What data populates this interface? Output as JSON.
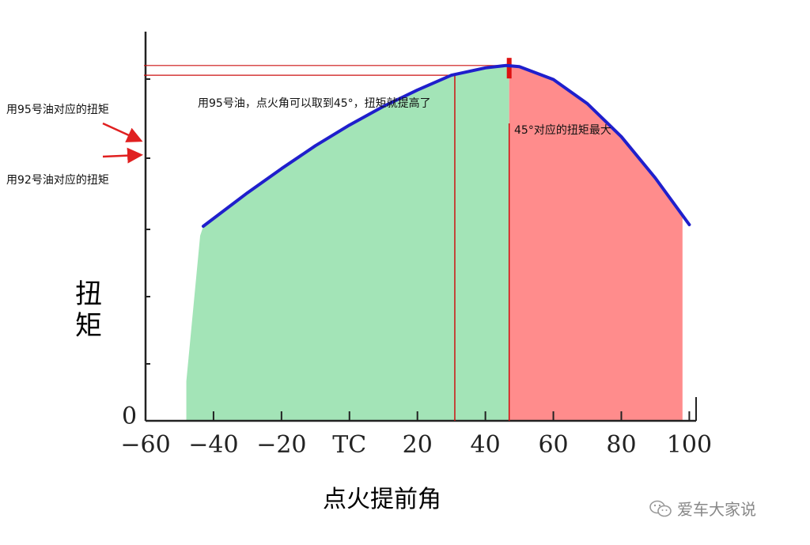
{
  "chart_data": {
    "type": "area",
    "xlabel": "点火提前角",
    "ylabel": "扭矩",
    "xlim": [
      -60,
      102
    ],
    "ylim": [
      0,
      10
    ],
    "x_tick_labels": [
      "−60",
      "−40",
      "−20",
      "TC",
      "20",
      "40",
      "60",
      "80",
      "100"
    ],
    "x_tick_values": [
      -60,
      -40,
      -20,
      0,
      20,
      40,
      60,
      80,
      100
    ],
    "y_tick_label_zero": "0",
    "curve": {
      "x": [
        -43,
        -30,
        -20,
        -10,
        0,
        10,
        20,
        30,
        40,
        46,
        50,
        60,
        70,
        80,
        90,
        100
      ],
      "y": [
        5.0,
        5.86,
        6.48,
        7.07,
        7.6,
        8.08,
        8.5,
        8.88,
        9.07,
        9.13,
        9.1,
        8.77,
        8.15,
        7.3,
        6.24,
        5.04
      ],
      "color": "#1f1fcc"
    },
    "regions": [
      {
        "from": -48,
        "to": 47,
        "color": "#a3e4b7"
      },
      {
        "from": 47,
        "to": 98,
        "color": "#ff8c8c"
      }
    ],
    "vertical_lines": [
      {
        "x": 31,
        "color": "#cc1111"
      },
      {
        "x": 47,
        "color": "#cc1111"
      }
    ],
    "horizontal_lines": [
      {
        "y": 9.13,
        "to_x": 47,
        "color": "#cc1111"
      },
      {
        "y": 8.88,
        "to_x": 31,
        "color": "#cc1111"
      }
    ],
    "annotations": {
      "top_note": "用95号油，点火角可以取到45°，扭矩就提高了",
      "max_note": "45°对应的扭矩最大",
      "label_95": "用95号油对应的扭矩",
      "label_92": "用92号油对应的扭矩"
    }
  },
  "watermark": {
    "text": "爱车大家说",
    "icon": "wechat-icon"
  }
}
